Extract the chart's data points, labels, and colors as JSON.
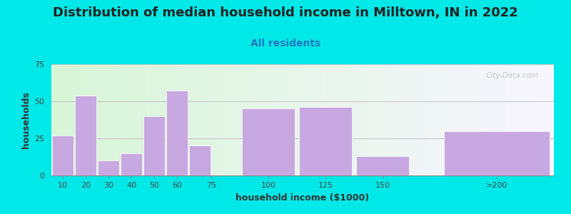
{
  "title": "Distribution of median household income in Milltown, IN in 2022",
  "subtitle": "All residents",
  "xlabel": "household income ($1000)",
  "ylabel": "households",
  "bar_labels": [
    "10",
    "20",
    "30",
    "40",
    "50",
    "60",
    "75",
    "100",
    "125",
    "150",
    ">200"
  ],
  "bar_values": [
    27,
    54,
    10,
    15,
    40,
    57,
    20,
    45,
    46,
    13,
    30
  ],
  "bar_lefts": [
    5,
    15,
    25,
    35,
    45,
    55,
    65,
    87.5,
    112.5,
    137.5,
    175
  ],
  "bar_widths": [
    10,
    10,
    10,
    10,
    10,
    10,
    10,
    25,
    25,
    25,
    50
  ],
  "bar_color": "#c8a8e0",
  "bar_edgecolor": "#ffffff",
  "ylim": [
    0,
    75
  ],
  "yticks": [
    0,
    25,
    50,
    75
  ],
  "xlim": [
    5,
    225
  ],
  "xtick_positions": [
    10,
    20,
    30,
    40,
    50,
    60,
    75,
    100,
    125,
    150,
    200
  ],
  "xtick_labels": [
    "10",
    "20",
    "30",
    "40",
    "50",
    "60",
    "75",
    "100",
    "125",
    "150",
    ">200"
  ],
  "background_color": "#00e8e8",
  "plot_bg_color": "#f0faf0",
  "title_fontsize": 13,
  "subtitle_fontsize": 10,
  "subtitle_color": "#2277bb",
  "axis_label_fontsize": 9,
  "tick_fontsize": 8,
  "watermark": "City-Data.com"
}
